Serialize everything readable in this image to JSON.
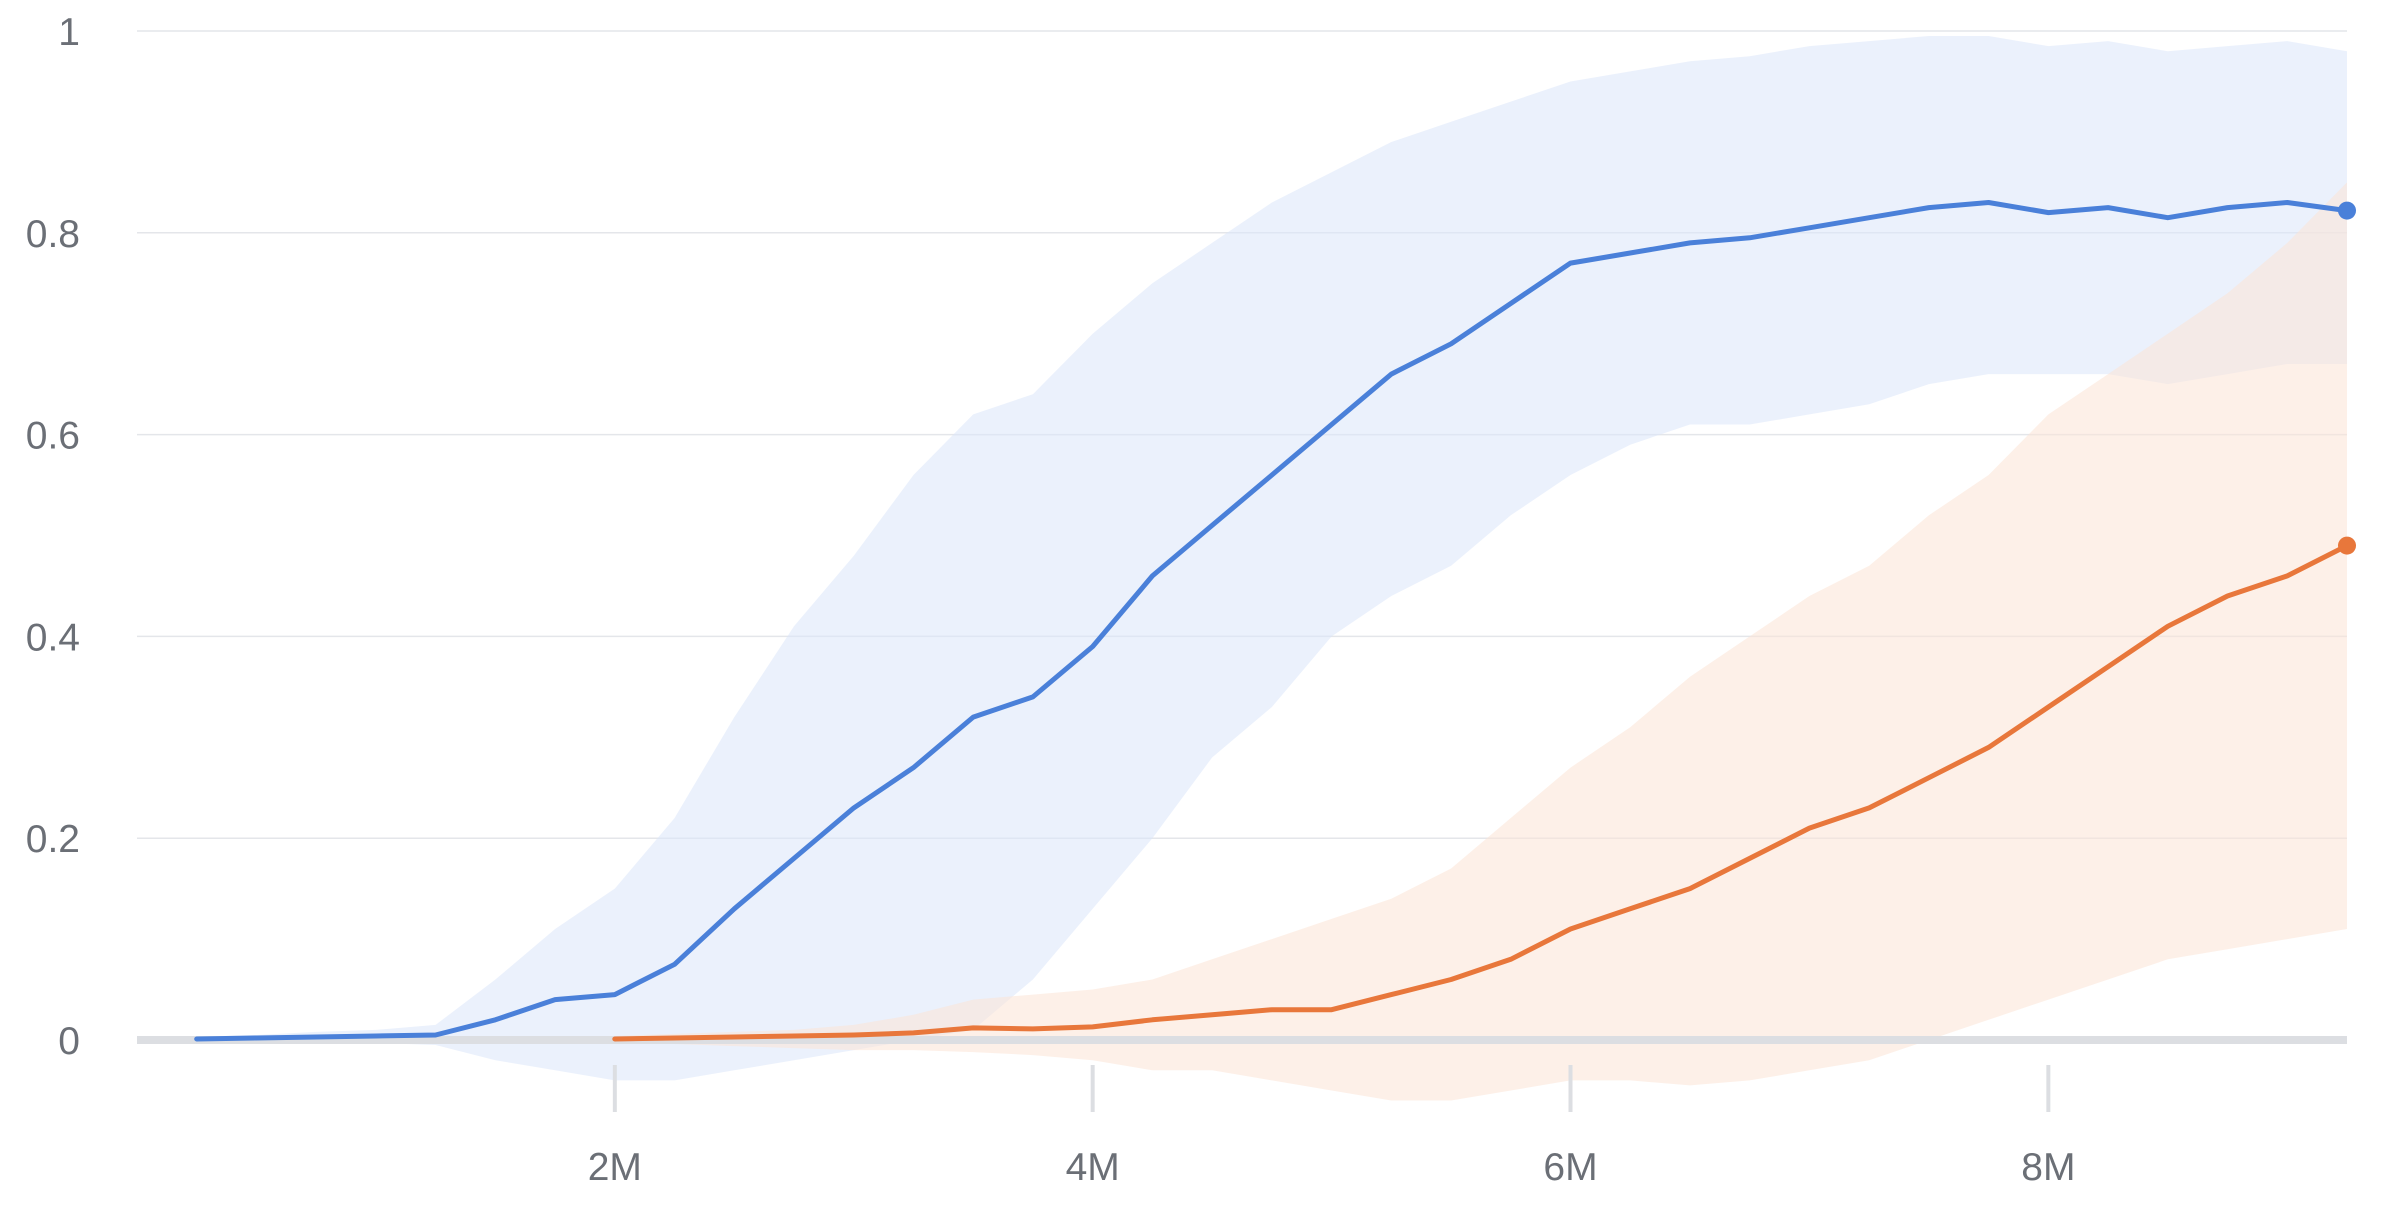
{
  "chart_data": {
    "type": "line",
    "title": "",
    "xlabel": "",
    "ylabel": "",
    "xlim": [
      0,
      9250000
    ],
    "ylim": [
      0,
      1
    ],
    "grid": true,
    "x_tick_values": [
      2000000,
      4000000,
      6000000,
      8000000
    ],
    "x_tick_labels": [
      "2M",
      "4M",
      "6M",
      "8M"
    ],
    "y_tick_values": [
      0,
      0.2,
      0.4,
      0.6,
      0.8,
      1
    ],
    "y_tick_labels": [
      "0",
      "0.2",
      "0.4",
      "0.6",
      "0.8",
      "1"
    ],
    "series": [
      {
        "color": "#4a80d9",
        "band_color": "#dbe6f9",
        "x": [
          250000,
          500000,
          750000,
          1000000,
          1250000,
          1500000,
          1750000,
          2000000,
          2250000,
          2500000,
          2750000,
          3000000,
          3250000,
          3500000,
          3750000,
          4000000,
          4250000,
          4500000,
          4750000,
          5000000,
          5250000,
          5500000,
          5750000,
          6000000,
          6250000,
          6500000,
          6750000,
          7000000,
          7250000,
          7500000,
          7750000,
          8000000,
          8250000,
          8500000,
          8750000,
          9000000,
          9250000
        ],
        "mean": [
          0.001,
          0.002,
          0.003,
          0.004,
          0.005,
          0.02,
          0.04,
          0.045,
          0.075,
          0.13,
          0.18,
          0.23,
          0.27,
          0.32,
          0.34,
          0.39,
          0.46,
          0.51,
          0.56,
          0.61,
          0.66,
          0.69,
          0.73,
          0.77,
          0.78,
          0.79,
          0.795,
          0.805,
          0.815,
          0.825,
          0.83,
          0.82,
          0.825,
          0.815,
          0.825,
          0.83,
          0.822
        ],
        "upper": [
          0.003,
          0.005,
          0.008,
          0.01,
          0.015,
          0.06,
          0.11,
          0.15,
          0.22,
          0.32,
          0.41,
          0.48,
          0.56,
          0.62,
          0.64,
          0.7,
          0.75,
          0.79,
          0.83,
          0.86,
          0.89,
          0.91,
          0.93,
          0.95,
          0.96,
          0.97,
          0.975,
          0.985,
          0.99,
          0.995,
          0.995,
          0.985,
          0.99,
          0.98,
          0.985,
          0.99,
          0.98
        ],
        "lower": [
          0,
          -0.002,
          -0.004,
          -0.003,
          -0.005,
          -0.02,
          -0.03,
          -0.04,
          -0.04,
          -0.03,
          -0.02,
          -0.01,
          0.0,
          0.01,
          0.06,
          0.13,
          0.2,
          0.28,
          0.33,
          0.4,
          0.44,
          0.47,
          0.52,
          0.56,
          0.59,
          0.61,
          0.61,
          0.62,
          0.63,
          0.65,
          0.66,
          0.66,
          0.66,
          0.65,
          0.66,
          0.67,
          0.67
        ]
      },
      {
        "color": "#e8773b",
        "band_color": "#fbe4d6",
        "x": [
          2000000,
          2250000,
          2500000,
          2750000,
          3000000,
          3250000,
          3500000,
          3750000,
          4000000,
          4250000,
          4500000,
          4750000,
          5000000,
          5250000,
          5500000,
          5750000,
          6000000,
          6250000,
          6500000,
          6750000,
          7000000,
          7250000,
          7500000,
          7750000,
          8000000,
          8250000,
          8500000,
          8750000,
          9000000,
          9250000
        ],
        "mean": [
          0.001,
          0.002,
          0.003,
          0.004,
          0.005,
          0.007,
          0.012,
          0.011,
          0.013,
          0.02,
          0.025,
          0.03,
          0.03,
          0.045,
          0.06,
          0.08,
          0.11,
          0.13,
          0.15,
          0.18,
          0.21,
          0.23,
          0.26,
          0.29,
          0.33,
          0.37,
          0.41,
          0.44,
          0.46,
          0.49
        ],
        "upper": [
          0.004,
          0.006,
          0.008,
          0.01,
          0.015,
          0.025,
          0.04,
          0.045,
          0.05,
          0.06,
          0.08,
          0.1,
          0.12,
          0.14,
          0.17,
          0.22,
          0.27,
          0.31,
          0.36,
          0.4,
          0.44,
          0.47,
          0.52,
          0.56,
          0.62,
          0.66,
          0.7,
          0.74,
          0.79,
          0.85
        ],
        "lower": [
          -0.002,
          -0.004,
          -0.006,
          -0.008,
          -0.01,
          -0.01,
          -0.012,
          -0.015,
          -0.02,
          -0.03,
          -0.03,
          -0.04,
          -0.05,
          -0.06,
          -0.06,
          -0.05,
          -0.04,
          -0.04,
          -0.045,
          -0.04,
          -0.03,
          -0.02,
          0.0,
          0.02,
          0.04,
          0.06,
          0.08,
          0.09,
          0.1,
          0.11
        ]
      }
    ]
  }
}
